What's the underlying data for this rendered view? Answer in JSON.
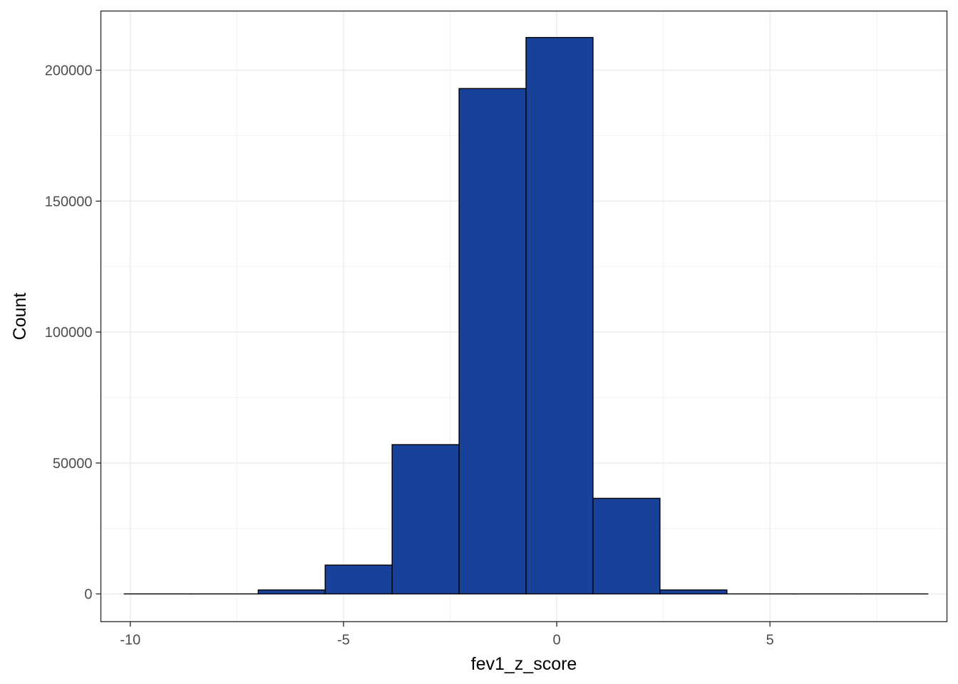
{
  "chart_data": {
    "type": "bar",
    "subtype": "histogram",
    "xlabel": "fev1_z_score",
    "ylabel": "Count",
    "xlim": [
      -10.69,
      9.15
    ],
    "ylim": [
      -10600,
      222600
    ],
    "x_ticks": [
      -10,
      -5,
      0,
      5
    ],
    "x_tick_labels": [
      "-10",
      "-5",
      "0",
      "5"
    ],
    "y_ticks": [
      0,
      50000,
      100000,
      150000,
      200000
    ],
    "y_tick_labels": [
      "0",
      "50000",
      "100000",
      "150000",
      "200000"
    ],
    "bin_edges": [
      -10.14,
      -8.57,
      -7.0,
      -5.43,
      -3.86,
      -2.29,
      -0.72,
      0.85,
      2.42,
      3.99,
      5.56,
      7.13,
      8.7
    ],
    "values": [
      0,
      0,
      1500,
      11000,
      57000,
      193000,
      212500,
      36500,
      1500,
      0,
      0,
      0
    ],
    "bar_fill": "#18429A",
    "bar_outline": "#000000",
    "grid": true,
    "theme": "bw"
  }
}
